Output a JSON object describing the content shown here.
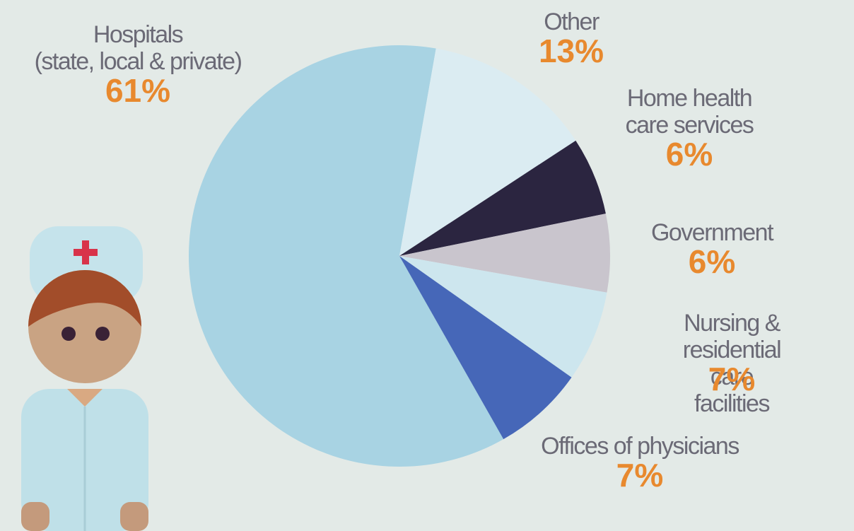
{
  "chart_data": {
    "type": "pie",
    "categories": [
      "Hospitals\n(state, local & private)",
      "Other",
      "Home health\ncare services",
      "Government",
      "Nursing & residential\ncare facilities",
      "Offices of physicians"
    ],
    "values": [
      61,
      13,
      6,
      6,
      7,
      7
    ],
    "value_labels": [
      "61%",
      "13%",
      "6%",
      "6%",
      "7%",
      "7%"
    ],
    "colors": [
      "#a8d3e3",
      "#dbecf2",
      "#2b2540",
      "#c9c5cd",
      "#cde6ee",
      "#4667b8"
    ]
  }
}
